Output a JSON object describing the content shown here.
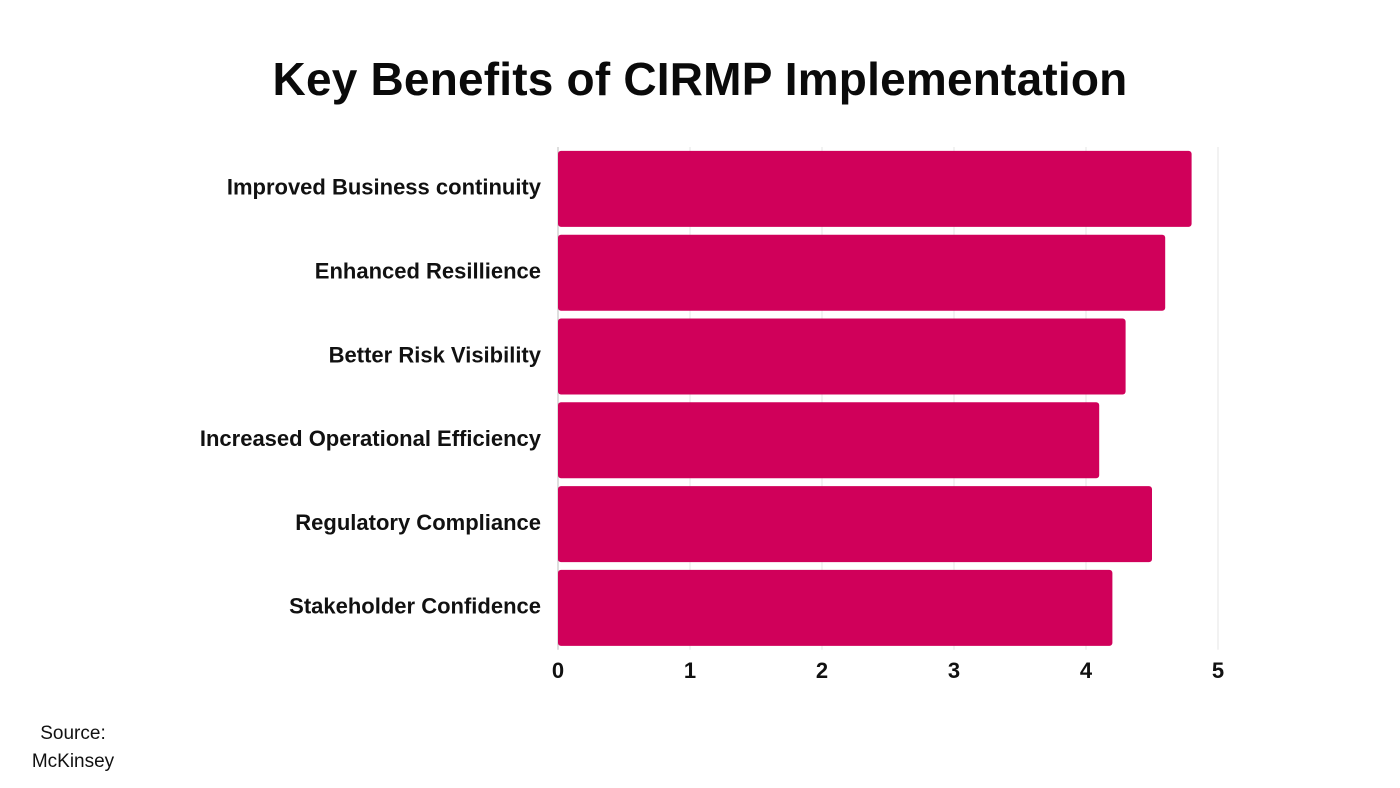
{
  "chart_data": {
    "type": "bar",
    "orientation": "horizontal",
    "title": "Key Benefits of CIRMP Implementation",
    "categories": [
      "Improved Business continuity",
      "Enhanced Resillience",
      "Better Risk Visibility",
      "Increased Operational Efficiency",
      "Regulatory Compliance",
      "Stakeholder Confidence"
    ],
    "values": [
      4.8,
      4.6,
      4.3,
      4.1,
      4.5,
      4.2
    ],
    "xlim": [
      0,
      5
    ],
    "xticks": [
      "0",
      "1",
      "2",
      "3",
      "4",
      "5"
    ],
    "grid": "vertical",
    "bar_color": "#d0005a",
    "grid_color": "#e6e6e6"
  },
  "source": {
    "label": "Source:",
    "name": "McKinsey"
  }
}
